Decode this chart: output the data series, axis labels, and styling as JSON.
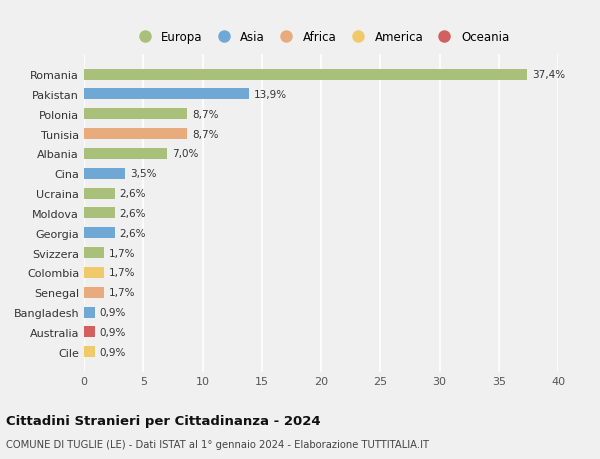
{
  "countries": [
    "Romania",
    "Pakistan",
    "Polonia",
    "Tunisia",
    "Albania",
    "Cina",
    "Ucraina",
    "Moldova",
    "Georgia",
    "Svizzera",
    "Colombia",
    "Senegal",
    "Bangladesh",
    "Australia",
    "Cile"
  ],
  "values": [
    37.4,
    13.9,
    8.7,
    8.7,
    7.0,
    3.5,
    2.6,
    2.6,
    2.6,
    1.7,
    1.7,
    1.7,
    0.9,
    0.9,
    0.9
  ],
  "labels": [
    "37,4%",
    "13,9%",
    "8,7%",
    "8,7%",
    "7,0%",
    "3,5%",
    "2,6%",
    "2,6%",
    "2,6%",
    "1,7%",
    "1,7%",
    "1,7%",
    "0,9%",
    "0,9%",
    "0,9%"
  ],
  "continents": [
    "Europa",
    "Asia",
    "Europa",
    "Africa",
    "Europa",
    "Asia",
    "Europa",
    "Europa",
    "Asia",
    "Europa",
    "America",
    "Africa",
    "Asia",
    "Oceania",
    "America"
  ],
  "continent_colors": {
    "Europa": "#a8c07a",
    "Asia": "#6fa8d4",
    "Africa": "#e8ab7e",
    "America": "#f0c96a",
    "Oceania": "#d45f5f"
  },
  "legend_order": [
    "Europa",
    "Asia",
    "Africa",
    "America",
    "Oceania"
  ],
  "title": "Cittadini Stranieri per Cittadinanza - 2024",
  "subtitle": "COMUNE DI TUGLIE (LE) - Dati ISTAT al 1° gennaio 2024 - Elaborazione TUTTITALIA.IT",
  "xlim": [
    0,
    40
  ],
  "xticks": [
    0,
    5,
    10,
    15,
    20,
    25,
    30,
    35,
    40
  ],
  "background_color": "#f0f0f0",
  "grid_color": "#ffffff",
  "bar_height": 0.55
}
